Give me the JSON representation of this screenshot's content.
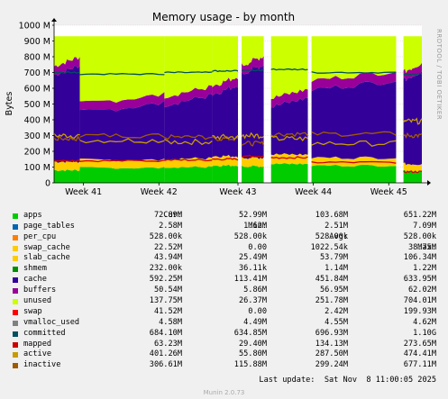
{
  "chart_data": {
    "type": "area",
    "title": "Memory usage - by month",
    "ylabel": "Bytes",
    "side_label": "RRDTOOL / TOBI OETIKER",
    "ylim": [
      0,
      1000
    ],
    "y_unit": "M",
    "y_ticks": [
      "0",
      "100 M",
      "200 M",
      "300 M",
      "400 M",
      "500 M",
      "600 M",
      "700 M",
      "800 M",
      "900 M",
      "1000 M"
    ],
    "x_ticks": [
      "Week 41",
      "Week 42",
      "Week 43",
      "Week 44",
      "Week 45"
    ],
    "grid": true,
    "legend_header": {
      "cur": "Cur:",
      "min": "Min:",
      "avg": "Avg:",
      "max": "Max:"
    },
    "series": [
      {
        "name": "apps",
        "color": "#00cc00",
        "cur": "72.89M",
        "min": "52.99M",
        "avg": "103.68M",
        "max": "651.22M"
      },
      {
        "name": "page_tables",
        "color": "#0066b3",
        "cur": "2.58M",
        "min": "1.62M",
        "avg": "2.51M",
        "max": "7.09M"
      },
      {
        "name": "per_cpu",
        "color": "#ff8000",
        "cur": "528.00k",
        "min": "528.00k",
        "avg": "528.00k",
        "max": "528.00k"
      },
      {
        "name": "swap_cache",
        "color": "#ffcc00",
        "cur": "22.52M",
        "min": "0.00",
        "avg": "1022.54k",
        "max": "38.75M"
      },
      {
        "name": "slab_cache",
        "color": "#ffcc00",
        "cur": "43.94M",
        "min": "25.49M",
        "avg": "53.79M",
        "max": "106.34M"
      },
      {
        "name": "shmem",
        "color": "#008f00",
        "cur": "232.00k",
        "min": "36.11k",
        "avg": "1.14M",
        "max": "1.22M"
      },
      {
        "name": "cache",
        "color": "#330099",
        "cur": "592.25M",
        "min": "113.41M",
        "avg": "451.84M",
        "max": "633.95M"
      },
      {
        "name": "buffers",
        "color": "#990099",
        "cur": "50.54M",
        "min": "5.86M",
        "avg": "56.95M",
        "max": "62.02M"
      },
      {
        "name": "unused",
        "color": "#ccff00",
        "cur": "137.75M",
        "min": "26.37M",
        "avg": "251.78M",
        "max": "704.01M"
      },
      {
        "name": "swap",
        "color": "#ff0000",
        "cur": "41.52M",
        "min": "0.00",
        "avg": "2.42M",
        "max": "199.93M"
      },
      {
        "name": "vmalloc_used",
        "color": "#808080",
        "cur": "4.58M",
        "min": "4.49M",
        "avg": "4.55M",
        "max": "4.62M"
      },
      {
        "name": "committed",
        "color": "#00505f",
        "cur": "684.10M",
        "min": "634.85M",
        "avg": "696.93M",
        "max": "1.10G"
      },
      {
        "name": "mapped",
        "color": "#cc0000",
        "cur": "63.23M",
        "min": "29.40M",
        "avg": "134.13M",
        "max": "273.65M"
      },
      {
        "name": "active",
        "color": "#c89c00",
        "cur": "401.26M",
        "min": "55.80M",
        "avg": "287.50M",
        "max": "474.41M"
      },
      {
        "name": "inactive",
        "color": "#a05a00",
        "cur": "306.61M",
        "min": "115.88M",
        "avg": "299.24M",
        "max": "677.11M"
      }
    ],
    "segments": [
      {
        "start": 0.0,
        "end": 0.07,
        "apps": 80,
        "slab": 55,
        "cache": 580,
        "buffers": 55,
        "unused": 150,
        "committed": 700,
        "mapped": 140,
        "active": 300,
        "inactive": 280
      },
      {
        "start": 0.07,
        "end": 0.3,
        "apps": 95,
        "slab": 50,
        "cache": 330,
        "buffers": 55,
        "unused": 390,
        "committed": 690,
        "mapped": 140,
        "active": 270,
        "inactive": 300
      },
      {
        "start": 0.3,
        "end": 0.43,
        "apps": 100,
        "slab": 55,
        "cache": 370,
        "buffers": 55,
        "unused": 340,
        "committed": 700,
        "mapped": 145,
        "active": 260,
        "inactive": 290
      },
      {
        "start": 0.43,
        "end": 0.5,
        "apps": 110,
        "slab": 60,
        "cache": 420,
        "buffers": 55,
        "unused": 280,
        "committed": 710,
        "mapped": 150,
        "active": 290,
        "inactive": 280
      },
      {
        "start": 0.51,
        "end": 0.57,
        "apps": 105,
        "slab": 55,
        "cache": 560,
        "buffers": 55,
        "unused": 150,
        "committed": 715,
        "mapped": 170,
        "active": 300,
        "inactive": 250
      },
      {
        "start": 0.59,
        "end": 0.69,
        "apps": 120,
        "slab": 60,
        "cache": 330,
        "buffers": 55,
        "unused": 360,
        "committed": 720,
        "mapped": 160,
        "active": 280,
        "inactive": 310
      },
      {
        "start": 0.7,
        "end": 0.93,
        "apps": 110,
        "slab": 50,
        "cache": 460,
        "buffers": 60,
        "unused": 240,
        "committed": 700,
        "mapped": 130,
        "active": 250,
        "inactive": 310
      },
      {
        "start": 0.95,
        "end": 1.0,
        "apps": 75,
        "slab": 45,
        "cache": 560,
        "buffers": 52,
        "unused": 140,
        "committed": 690,
        "mapped": 70,
        "active": 390,
        "inactive": 300
      }
    ]
  },
  "last_update": "Last update:  Sat Nov  8 11:00:05 2025",
  "footer": "Munin 2.0.73"
}
